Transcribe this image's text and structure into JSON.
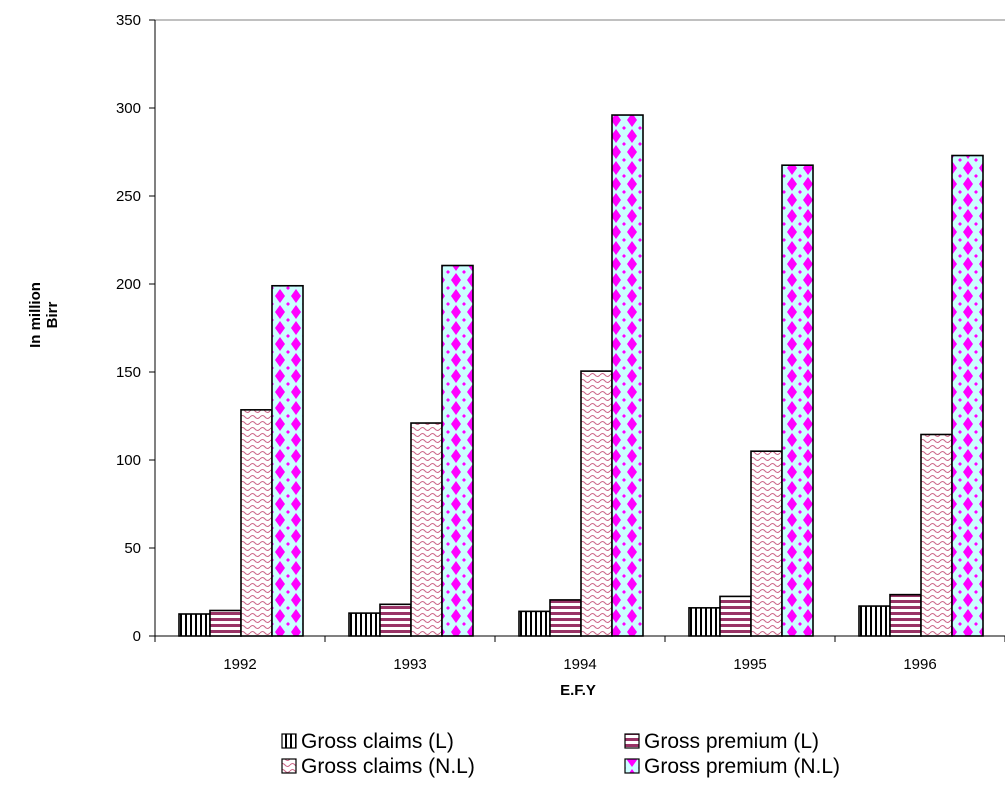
{
  "chart_data": {
    "type": "bar",
    "categories": [
      "1992",
      "1993",
      "1994",
      "1995",
      "1996"
    ],
    "series": [
      {
        "name": "Gross claims (L)",
        "values": [
          12.5,
          13,
          14,
          16,
          17
        ],
        "pattern": "vstripes",
        "color": "#000000",
        "fill": "#c0c0c0"
      },
      {
        "name": "Gross premium (L)",
        "values": [
          14.5,
          18,
          20.5,
          22.5,
          23.5
        ],
        "pattern": "hstripes",
        "color": "#993366",
        "fill": "#ffffff"
      },
      {
        "name": "Gross claims (N.L)",
        "values": [
          128.5,
          121,
          150.5,
          105,
          114.5
        ],
        "pattern": "waves",
        "color": "#cc6688",
        "fill": "#ffffff"
      },
      {
        "name": "Gross premium (N.L)",
        "values": [
          199,
          210.5,
          296,
          267.5,
          273
        ],
        "pattern": "diamonds",
        "color": "#ff00ff",
        "fill": "#ccffff"
      }
    ],
    "xlabel": "E.F.Y",
    "ylabel_lines": [
      "In million",
      "Birr"
    ],
    "ylim": [
      0,
      350
    ],
    "yticks": [
      "0",
      "50",
      "100",
      "150",
      "200",
      "250",
      "300",
      "350"
    ],
    "grid": false,
    "legend_position": "bottom"
  }
}
